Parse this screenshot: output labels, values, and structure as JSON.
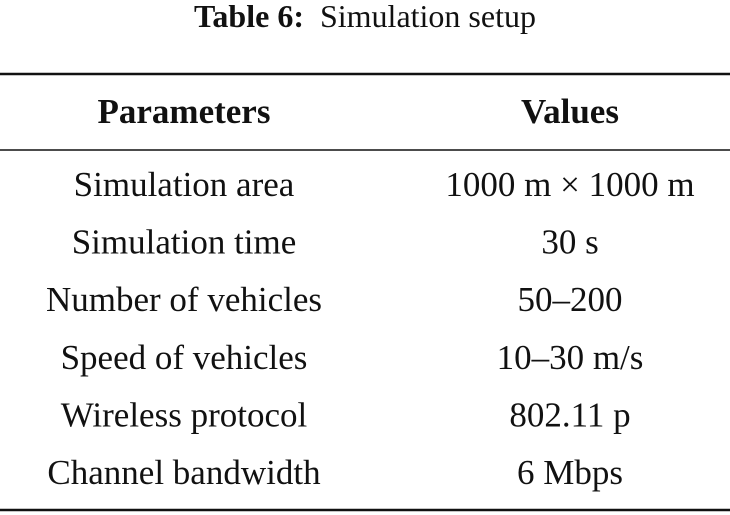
{
  "caption": {
    "label": "Table 6:",
    "title": "Simulation setup"
  },
  "table": {
    "columns": [
      "Parameters",
      "Values"
    ],
    "rows": [
      [
        "Simulation area",
        "1000 m × 1000 m"
      ],
      [
        "Simulation time",
        "30 s"
      ],
      [
        "Number of vehicles",
        "50–200"
      ],
      [
        "Speed of vehicles",
        "10–30 m/s"
      ],
      [
        "Wireless protocol",
        "802.11 p"
      ],
      [
        "Channel bandwidth",
        "6 Mbps"
      ]
    ]
  }
}
